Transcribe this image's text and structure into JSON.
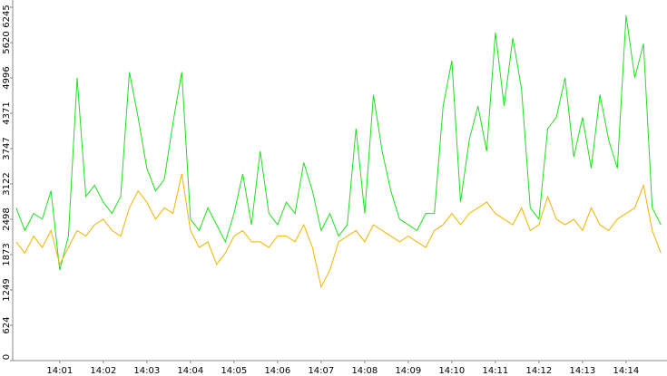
{
  "chart_data": {
    "type": "line",
    "x": [
      840,
      840.2,
      840.4,
      840.6,
      840.8,
      841,
      841.2,
      841.4,
      841.6,
      841.8,
      842,
      842.2,
      842.4,
      842.6,
      842.8,
      843,
      843.2,
      843.4,
      843.6,
      843.8,
      844,
      844.2,
      844.4,
      844.6,
      844.8,
      845,
      845.2,
      845.4,
      845.6,
      845.8,
      846,
      846.2,
      846.4,
      846.6,
      846.8,
      847,
      847.2,
      847.4,
      847.6,
      847.8,
      848,
      848.2,
      848.4,
      848.6,
      848.8,
      849,
      849.2,
      849.4,
      849.6,
      849.8,
      850,
      850.2,
      850.4,
      850.6,
      850.8,
      851,
      851.2,
      851.4,
      851.6,
      851.8,
      852,
      852.2,
      852.4,
      852.6,
      852.8,
      853,
      853.2,
      853.4,
      853.6,
      853.8,
      854,
      854.2,
      854.4,
      854.6,
      854.8
    ],
    "series": [
      {
        "color": "#22dd22",
        "values": [
          2700,
          2300,
          2600,
          2500,
          3000,
          1600,
          2200,
          5000,
          2900,
          3100,
          2800,
          2600,
          2900,
          5100,
          4300,
          3400,
          3000,
          3200,
          4200,
          5100,
          2500,
          2300,
          2700,
          2400,
          2100,
          2600,
          3300,
          2400,
          3700,
          2600,
          2400,
          2800,
          2600,
          3500,
          3000,
          2300,
          2600,
          2200,
          2400,
          4100,
          2600,
          4700,
          3700,
          3000,
          2500,
          2400,
          2300,
          2600,
          2600,
          4500,
          5300,
          2800,
          3900,
          4500,
          3700,
          5800,
          4500,
          5700,
          4800,
          2700,
          2500,
          4100,
          4300,
          5000,
          3600,
          4300,
          3400,
          4700,
          3900,
          3400,
          6100,
          5000,
          5600,
          2700,
          2400
        ]
      },
      {
        "color": "#f2b400",
        "values": [
          2100,
          1900,
          2200,
          2000,
          2300,
          1700,
          2000,
          2300,
          2200,
          2400,
          2500,
          2300,
          2200,
          2700,
          3000,
          2800,
          2500,
          2700,
          2600,
          3300,
          2300,
          2000,
          2100,
          1700,
          1900,
          2200,
          2300,
          2100,
          2100,
          2000,
          2200,
          2200,
          2100,
          2400,
          2000,
          1300,
          1600,
          2100,
          2200,
          2300,
          2100,
          2400,
          2300,
          2200,
          2100,
          2200,
          2100,
          2000,
          2300,
          2400,
          2600,
          2400,
          2600,
          2700,
          2800,
          2600,
          2500,
          2400,
          2700,
          2300,
          2400,
          2900,
          2500,
          2400,
          2500,
          2300,
          2700,
          2400,
          2300,
          2500,
          2600,
          2700,
          3100,
          2300,
          1900
        ]
      }
    ],
    "xlim": [
      839.92,
      854.94
    ],
    "xticks": [
      {
        "value": 841,
        "label": "14:01"
      },
      {
        "value": 842,
        "label": "14:02"
      },
      {
        "value": 843,
        "label": "14:03"
      },
      {
        "value": 844,
        "label": "14:04"
      },
      {
        "value": 845,
        "label": "14:05"
      },
      {
        "value": 846,
        "label": "14:06"
      },
      {
        "value": 847,
        "label": "14:07"
      },
      {
        "value": 848,
        "label": "14:08"
      },
      {
        "value": 849,
        "label": "14:09"
      },
      {
        "value": 850,
        "label": "14:10"
      },
      {
        "value": 851,
        "label": "14:11"
      },
      {
        "value": 852,
        "label": "14:12"
      },
      {
        "value": 853,
        "label": "14:13"
      },
      {
        "value": 854,
        "label": "14:14"
      }
    ],
    "ylim": [
      0,
      6245
    ],
    "yticks": [
      0,
      624,
      1249,
      1873,
      2498,
      3122,
      3747,
      4371,
      4996,
      5620,
      6245
    ]
  }
}
